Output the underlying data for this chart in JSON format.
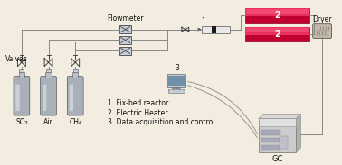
{
  "bg_color": "#f2ede0",
  "line_color": "#888888",
  "dark_line": "#444444",
  "labels": {
    "SO2": "SO₂",
    "Air": "Air",
    "CH4": "CH₄",
    "flowmeter": "Flowmeter",
    "valves": "Valves",
    "GC": "GC",
    "Dryer": "Dryer",
    "item1": "1. Fix-bed reactor",
    "item2": "2. Electric Heater",
    "item3": "3. Data acquisition and control",
    "label1": "1",
    "label2": "2",
    "label3": "3"
  },
  "font_size": 5.5
}
